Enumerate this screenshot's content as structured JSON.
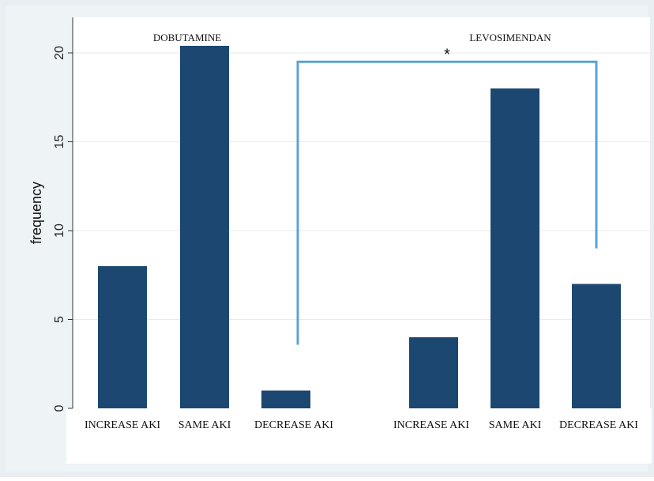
{
  "chart_data": {
    "type": "bar",
    "ylabel": "frequency",
    "ylim": [
      0,
      22
    ],
    "yticks": [
      0,
      5,
      10,
      15,
      20
    ],
    "grid": true,
    "colors": {
      "outer_background": "#e8eef2",
      "plot_background": "#ffffff",
      "bar": "#1c4770",
      "bracket": "#5ba3d6",
      "gridline": "#e6ebef",
      "axis": "#333333"
    },
    "groups": [
      {
        "label": "DOBUTAMINE",
        "categories": [
          "INCREASE  AKI",
          "SAME AKI",
          "DECREASE AKI"
        ],
        "values": [
          8,
          20.4,
          1
        ]
      },
      {
        "label": "LEVOSIMENDAN",
        "categories": [
          "INCREASE  AKI",
          "SAME AKI",
          "DECREASE AKI"
        ],
        "values": [
          4,
          18,
          7
        ]
      }
    ],
    "annotation": {
      "text": "*",
      "from": "DOBUTAMINE DECREASE AKI",
      "to": "LEVOSIMENDAN DECREASE AKI"
    }
  }
}
